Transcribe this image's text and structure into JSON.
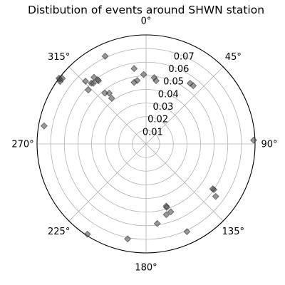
{
  "chart_data": {
    "type": "scatter",
    "projection": "polar",
    "title": "Distibution of events around SHWN station",
    "theta_zero_location": "N",
    "theta_direction": "clockwise",
    "theta_ticks": [
      "0°",
      "45°",
      "90°",
      "135°",
      "180°",
      "225°",
      "270°",
      "315°"
    ],
    "r_ticks": [
      "0.01",
      "0.02",
      "0.03",
      "0.04",
      "0.05",
      "0.06",
      "0.07"
    ],
    "r_tick_values": [
      0.01,
      0.02,
      0.03,
      0.04,
      0.05,
      0.06,
      0.07
    ],
    "rlim": [
      0,
      0.08
    ],
    "grid": true,
    "marker": "diamond",
    "marker_color": "#555555",
    "marker_alpha": 0.6,
    "series": [
      {
        "points": [
          {
            "theta": 335,
            "r": 0.071
          },
          {
            "theta": 351,
            "r": 0.056
          },
          {
            "theta": 358,
            "r": 0.051
          },
          {
            "theta": 352,
            "r": 0.047
          },
          {
            "theta": 349,
            "r": 0.046
          },
          {
            "theta": 7,
            "r": 0.049
          },
          {
            "theta": 9,
            "r": 0.047
          },
          {
            "theta": 36,
            "r": 0.055
          },
          {
            "theta": 39,
            "r": 0.055
          },
          {
            "theta": 88,
            "r": 0.079
          },
          {
            "theta": 127,
            "r": 0.064
          },
          {
            "theta": 124,
            "r": 0.06
          },
          {
            "theta": 124,
            "r": 0.059
          },
          {
            "theta": 155,
            "r": 0.071
          },
          {
            "theta": 162,
            "r": 0.048
          },
          {
            "theta": 162,
            "r": 0.049
          },
          {
            "theta": 164,
            "r": 0.054
          },
          {
            "theta": 160,
            "r": 0.053
          },
          {
            "theta": 172,
            "r": 0.059
          },
          {
            "theta": 191,
            "r": 0.071
          },
          {
            "theta": 213,
            "r": 0.079
          },
          {
            "theta": 280,
            "r": 0.076
          },
          {
            "theta": 306,
            "r": 0.078
          },
          {
            "theta": 307,
            "r": 0.079
          },
          {
            "theta": 307,
            "r": 0.08
          },
          {
            "theta": 308,
            "r": 0.078
          },
          {
            "theta": 313,
            "r": 0.058
          },
          {
            "theta": 316,
            "r": 0.064
          },
          {
            "theta": 318,
            "r": 0.06
          },
          {
            "theta": 319,
            "r": 0.059
          },
          {
            "theta": 322,
            "r": 0.062
          },
          {
            "theta": 323,
            "r": 0.058
          },
          {
            "theta": 323,
            "r": 0.059
          },
          {
            "theta": 321,
            "r": 0.048
          },
          {
            "theta": 324,
            "r": 0.046
          },
          {
            "theta": 323,
            "r": 0.042
          }
        ]
      }
    ]
  }
}
